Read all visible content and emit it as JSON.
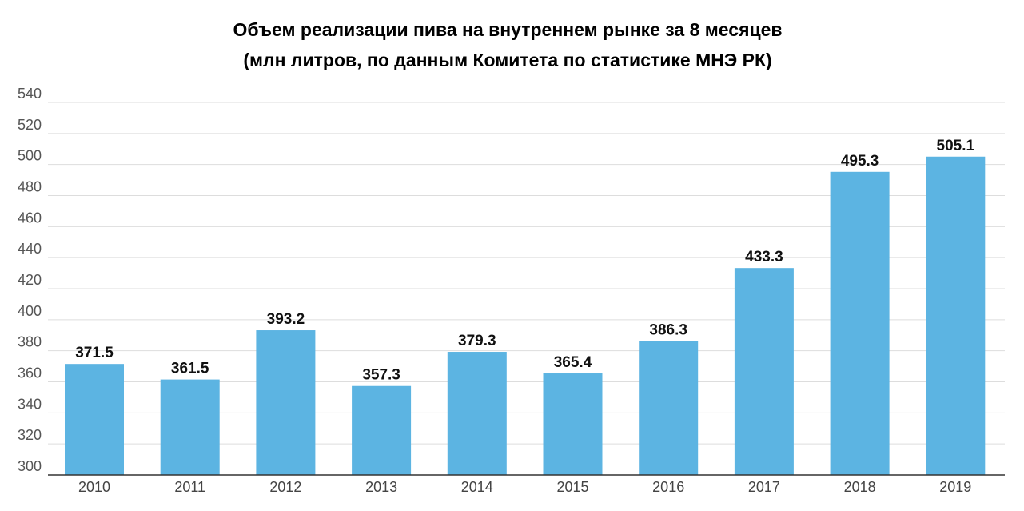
{
  "chart_data": {
    "type": "bar",
    "title": "Объем реализации пива на внутреннем рынке за 8 месяцев",
    "subtitle": "(млн литров, по данным Комитета по статистике МНЭ РК)",
    "categories": [
      "2010",
      "2011",
      "2012",
      "2013",
      "2014",
      "2015",
      "2016",
      "2017",
      "2018",
      "2019"
    ],
    "values": [
      371.5,
      361.5,
      393.2,
      357.3,
      379.3,
      365.4,
      386.3,
      433.3,
      495.3,
      505.1
    ],
    "value_labels": [
      "371.5",
      "361.5",
      "393.2",
      "357.3",
      "379.3",
      "365.4",
      "386.3",
      "433.3",
      "495.3",
      "505.1"
    ],
    "yticks": [
      "300",
      "320",
      "340",
      "360",
      "380",
      "400",
      "420",
      "440",
      "460",
      "480",
      "500",
      "520",
      "540"
    ],
    "ylim": [
      300,
      540
    ],
    "xlabel": "",
    "ylabel": "",
    "grid": true,
    "legend": "none",
    "bar_color": "#5cb4e2",
    "grid_color": "#dddddd",
    "axis_color": "#333333"
  }
}
